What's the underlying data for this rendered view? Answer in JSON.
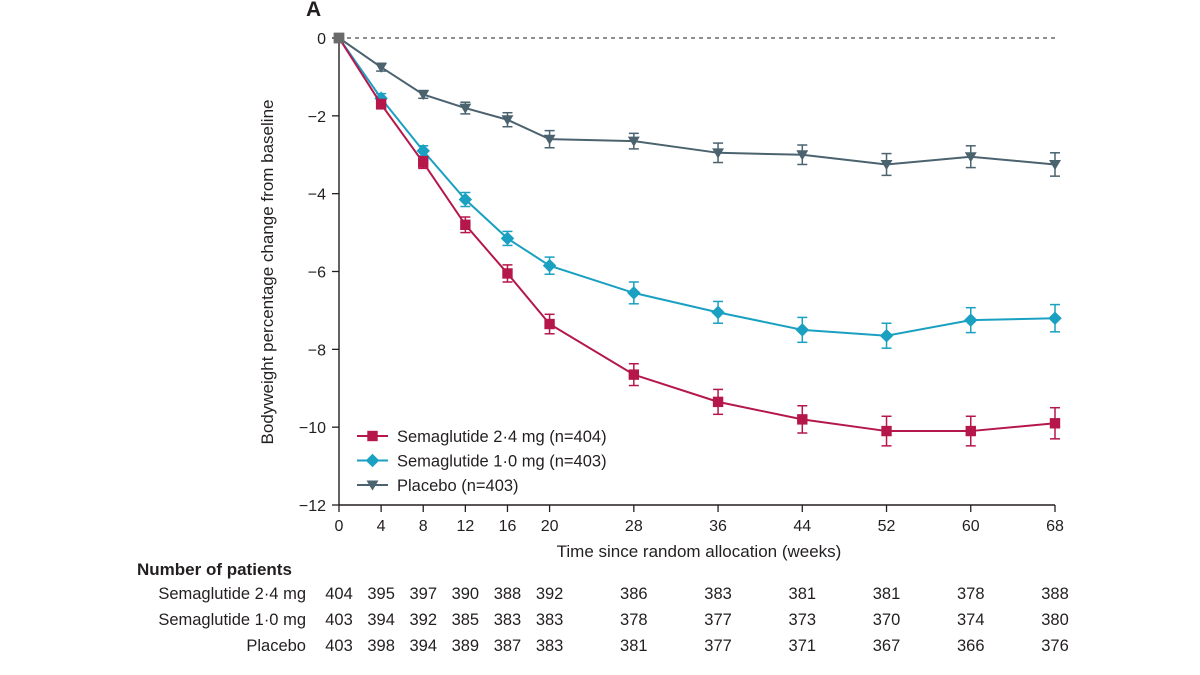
{
  "chart_data": {
    "type": "line",
    "panel_label": "A",
    "xlabel": "Time since random allocation (weeks)",
    "ylabel": "Bodyweight percentage change from baseline",
    "x": [
      0,
      4,
      8,
      12,
      16,
      20,
      28,
      36,
      44,
      52,
      60,
      68
    ],
    "x_ticks": [
      0,
      4,
      8,
      12,
      16,
      20,
      28,
      36,
      44,
      52,
      60,
      68
    ],
    "y_ticks": [
      0,
      -2,
      -4,
      -6,
      -8,
      -10,
      -12
    ],
    "y_tick_labels": [
      "0",
      "−2",
      "−4",
      "−6",
      "−8",
      "−10",
      "−12"
    ],
    "xlim": [
      0,
      68
    ],
    "ylim": [
      -12,
      0
    ],
    "reference_line": 0,
    "grid": false,
    "legend_position": "bottom-left",
    "series": [
      {
        "name": "Semaglutide 2·4 mg (n=404)",
        "color": "#b5174a",
        "marker": "square",
        "values": [
          0,
          -1.7,
          -3.2,
          -4.8,
          -6.05,
          -7.35,
          -8.65,
          -9.35,
          -9.8,
          -10.1,
          -10.1,
          -9.9
        ],
        "errors": [
          0,
          0.12,
          0.15,
          0.2,
          0.22,
          0.25,
          0.28,
          0.32,
          0.35,
          0.38,
          0.38,
          0.4
        ]
      },
      {
        "name": "Semaglutide 1·0 mg (n=403)",
        "color": "#1aa0c1",
        "marker": "diamond",
        "values": [
          0,
          -1.55,
          -2.9,
          -4.15,
          -5.15,
          -5.85,
          -6.55,
          -7.05,
          -7.5,
          -7.65,
          -7.25,
          -7.2
        ],
        "errors": [
          0,
          0.12,
          0.13,
          0.18,
          0.18,
          0.22,
          0.28,
          0.28,
          0.32,
          0.32,
          0.32,
          0.35
        ]
      },
      {
        "name": "Placebo (n=403)",
        "color": "#4b626f",
        "marker": "triangle-down",
        "values": [
          0,
          -0.75,
          -1.45,
          -1.8,
          -2.1,
          -2.6,
          -2.65,
          -2.95,
          -3.0,
          -3.25,
          -3.05,
          -3.25
        ],
        "errors": [
          0,
          0.1,
          0.1,
          0.15,
          0.18,
          0.22,
          0.2,
          0.25,
          0.25,
          0.28,
          0.28,
          0.3
        ]
      }
    ],
    "risk_table": {
      "title": "Number of patients",
      "rows": [
        {
          "label": "Semaglutide 2·4 mg",
          "values": [
            "404",
            "395",
            "397",
            "390",
            "388",
            "392",
            "386",
            "383",
            "381",
            "381",
            "378",
            "388"
          ]
        },
        {
          "label": "Semaglutide 1·0 mg",
          "values": [
            "403",
            "394",
            "392",
            "385",
            "383",
            "383",
            "378",
            "377",
            "373",
            "370",
            "374",
            "380"
          ]
        },
        {
          "label": "Placebo",
          "values": [
            "403",
            "398",
            "394",
            "389",
            "387",
            "383",
            "381",
            "377",
            "371",
            "367",
            "366",
            "376"
          ]
        }
      ]
    }
  }
}
